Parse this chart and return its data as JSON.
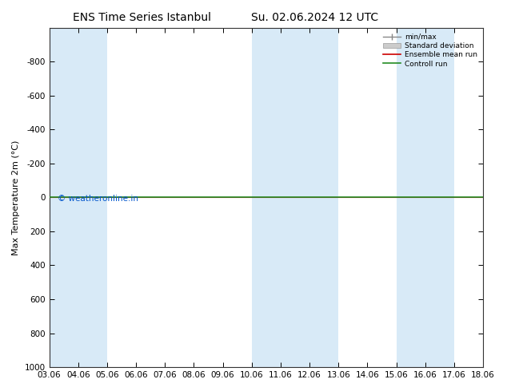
{
  "title_left": "ENS Time Series Istanbul",
  "title_right": "Su. 02.06.2024 12 UTC",
  "ylabel": "Max Temperature 2m (°C)",
  "xlim": [
    0,
    15
  ],
  "ylim": [
    1000,
    -1000
  ],
  "yticks": [
    -800,
    -600,
    -400,
    -200,
    0,
    200,
    400,
    600,
    800,
    1000
  ],
  "x_labels": [
    "03.06",
    "04.06",
    "05.06",
    "06.06",
    "07.06",
    "08.06",
    "09.06",
    "10.06",
    "11.06",
    "12.06",
    "13.06",
    "14.06",
    "15.06",
    "16.06",
    "17.06",
    "18.06"
  ],
  "x_positions": [
    0,
    1,
    2,
    3,
    4,
    5,
    6,
    7,
    8,
    9,
    10,
    11,
    12,
    13,
    14,
    15
  ],
  "band_ranges": [
    [
      0,
      2
    ],
    [
      7,
      10
    ],
    [
      12,
      14
    ]
  ],
  "band_color": "#d8eaf7",
  "green_line_color": "#228B22",
  "red_line_color": "#cc0000",
  "copyright_text": "© weatheronline.in",
  "copyright_color": "#0055cc",
  "background_color": "#ffffff",
  "title_fontsize": 10,
  "label_fontsize": 8,
  "tick_fontsize": 7.5,
  "legend_labels": [
    "min/max",
    "Standard deviation",
    "Ensemble mean run",
    "Controll run"
  ],
  "legend_line_color": "#888888",
  "legend_patch_color": "#cccccc",
  "legend_red": "#cc0000",
  "legend_green": "#228B22"
}
